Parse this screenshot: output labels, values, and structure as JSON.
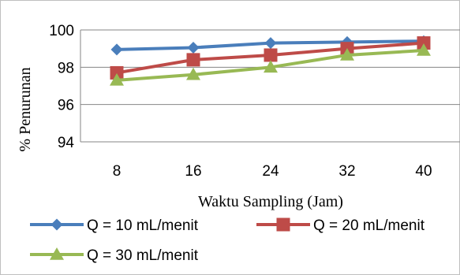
{
  "chart_data": {
    "type": "line",
    "title": "",
    "xlabel": "Waktu Sampling (Jam)",
    "ylabel": "% Penurunan",
    "categories": [
      "8",
      "16",
      "24",
      "32",
      "40"
    ],
    "ylim": [
      94,
      100
    ],
    "yticks": [
      "94",
      "96",
      "98",
      "100"
    ],
    "grid": true,
    "legend_position": "bottom",
    "series": [
      {
        "name": "Q = 10 mL/menit",
        "values": [
          98.95,
          99.05,
          99.3,
          99.35,
          99.4
        ],
        "color": "#4a7ebb",
        "marker": "diamond"
      },
      {
        "name": "Q = 20 mL/menit",
        "values": [
          97.7,
          98.4,
          98.65,
          99.0,
          99.3
        ],
        "color": "#be4b48",
        "marker": "square"
      },
      {
        "name": "Q = 30 mL/menit",
        "values": [
          97.3,
          97.6,
          98.0,
          98.65,
          98.9
        ],
        "color": "#98b954",
        "marker": "triangle"
      }
    ]
  }
}
